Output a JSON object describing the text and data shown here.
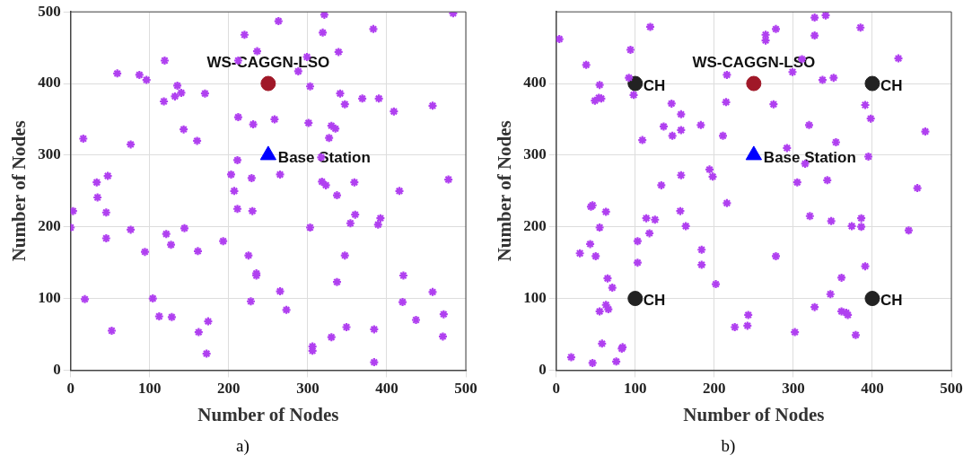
{
  "chart_data": [
    {
      "type": "scatter",
      "xlabel": "Number of Nodes",
      "ylabel": "Number of Nodes",
      "xlim": [
        0,
        500
      ],
      "ylim": [
        0,
        500
      ],
      "xticks": [
        0,
        100,
        200,
        300,
        400,
        500
      ],
      "yticks": [
        0,
        100,
        200,
        300,
        400,
        500
      ],
      "grid": true,
      "annotations": [
        "a)"
      ],
      "series": [
        {
          "color": "#b040f0",
          "marker": "cross",
          "x": [
            321,
            484,
            263,
            220,
            319,
            383,
            236,
            339,
            119,
            212,
            299,
            288,
            59,
            87,
            96,
            135,
            303,
            140,
            132,
            170,
            118,
            341,
            347,
            369,
            390,
            409,
            458,
            212,
            231,
            258,
            301,
            330,
            335,
            327,
            143,
            160,
            16,
            76,
            211,
            317,
            203,
            229,
            265,
            318,
            323,
            359,
            478,
            33,
            47,
            207,
            416,
            34,
            3,
            45,
            0,
            45,
            76,
            94,
            121,
            127,
            144,
            161,
            193,
            211,
            230,
            225,
            235,
            235,
            265,
            273,
            228,
            303,
            337,
            360,
            354,
            392,
            389,
            347,
            337,
            421,
            420,
            458,
            437,
            472,
            471,
            306,
            306,
            330,
            349,
            384,
            384,
            18,
            52,
            104,
            112,
            128,
            162,
            174,
            172
          ],
          "values": [
            496,
            498,
            487,
            468,
            471,
            476,
            445,
            444,
            432,
            432,
            437,
            417,
            414,
            412,
            405,
            397,
            396,
            387,
            382,
            386,
            375,
            386,
            371,
            379,
            379,
            361,
            369,
            353,
            343,
            350,
            345,
            341,
            337,
            324,
            336,
            320,
            323,
            315,
            293,
            297,
            273,
            268,
            273,
            263,
            258,
            262,
            266,
            262,
            271,
            250,
            250,
            241,
            222,
            220,
            199,
            184,
            196,
            165,
            190,
            175,
            198,
            166,
            180,
            225,
            222,
            160,
            135,
            132,
            110,
            84,
            96,
            199,
            244,
            217,
            205,
            212,
            203,
            160,
            123,
            132,
            95,
            109,
            70,
            78,
            47,
            33,
            27,
            46,
            60,
            57,
            11,
            99,
            55,
            100,
            75,
            74,
            53,
            68,
            23
          ]
        },
        {
          "name": "WS-CAGGN-LSO",
          "color": "#a01828",
          "marker": "circle",
          "x": [
            250
          ],
          "values": [
            400
          ]
        },
        {
          "name": "Base Station",
          "color": "#0000ff",
          "marker": "triangle",
          "x": [
            250
          ],
          "values": [
            300
          ]
        }
      ]
    },
    {
      "type": "scatter",
      "xlabel": "Number of Nodes",
      "ylabel": "Number of Nodes",
      "xlim": [
        0,
        500
      ],
      "ylim": [
        0,
        500
      ],
      "xticks": [
        0,
        100,
        200,
        300,
        400,
        500
      ],
      "yticks": [
        0,
        100,
        200,
        300,
        400
      ],
      "grid": true,
      "annotations": [
        "b)"
      ],
      "series": [
        {
          "color": "#b040f0",
          "marker": "cross",
          "x": [
            4,
            119,
            94,
            38,
            55,
            49,
            54,
            57,
            92,
            98,
            146,
            158,
            136,
            147,
            158,
            183,
            109,
            216,
            215,
            211,
            265,
            265,
            278,
            327,
            341,
            327,
            385,
            433,
            299,
            311,
            337,
            351,
            275,
            320,
            391,
            398,
            467,
            354,
            292,
            315,
            395,
            194,
            198,
            158,
            133,
            305,
            343,
            457,
            216,
            44,
            46,
            63,
            55,
            43,
            30,
            50,
            114,
            125,
            118,
            103,
            103,
            157,
            164,
            184,
            184,
            202,
            278,
            321,
            348,
            374,
            386,
            386,
            446,
            391,
            361,
            347,
            327,
            361,
            367,
            369,
            379,
            302,
            243,
            242,
            226,
            65,
            71,
            63,
            66,
            55,
            58,
            84,
            83,
            76,
            46,
            19
          ],
          "values": [
            462,
            479,
            447,
            426,
            398,
            376,
            380,
            379,
            408,
            384,
            372,
            357,
            340,
            327,
            335,
            342,
            321,
            412,
            374,
            327,
            468,
            460,
            476,
            492,
            495,
            467,
            478,
            435,
            416,
            434,
            405,
            408,
            371,
            342,
            370,
            351,
            333,
            318,
            310,
            288,
            298,
            280,
            270,
            272,
            258,
            262,
            265,
            254,
            233,
            228,
            230,
            221,
            199,
            176,
            163,
            159,
            212,
            210,
            191,
            180,
            150,
            222,
            201,
            168,
            147,
            120,
            159,
            215,
            208,
            201,
            212,
            200,
            195,
            145,
            129,
            106,
            88,
            82,
            80,
            77,
            49,
            53,
            77,
            62,
            60,
            128,
            115,
            91,
            85,
            82,
            37,
            32,
            30,
            12,
            10,
            18
          ]
        },
        {
          "name": "CH",
          "color": "#222222",
          "marker": "circle",
          "x": [
            100,
            400,
            100,
            400
          ],
          "values": [
            400,
            400,
            100,
            100
          ]
        },
        {
          "name": "WS-CAGGN-LSO",
          "color": "#a01828",
          "marker": "circle",
          "x": [
            250
          ],
          "values": [
            400
          ]
        },
        {
          "name": "Base Station",
          "color": "#0000ff",
          "marker": "triangle",
          "x": [
            250
          ],
          "values": [
            300
          ]
        }
      ]
    }
  ]
}
